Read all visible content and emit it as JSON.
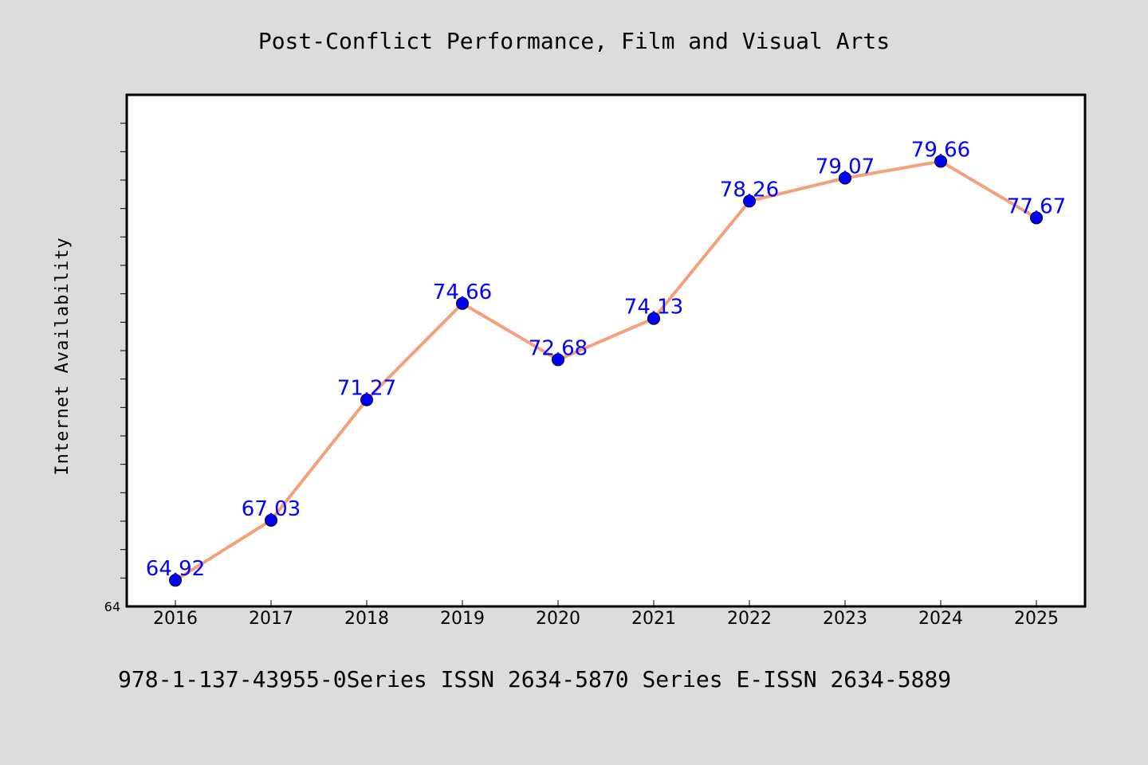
{
  "chart_data": {
    "type": "line",
    "title": "Post-Conflict Performance, Film and Visual Arts",
    "xlabel": "",
    "ylabel": "Internet Availability",
    "categories": [
      "2016",
      "2017",
      "2018",
      "2019",
      "2020",
      "2021",
      "2022",
      "2023",
      "2024",
      "2025"
    ],
    "series": [
      {
        "values": [
          64.92,
          67.03,
          71.27,
          74.66,
          72.68,
          74.13,
          78.26,
          79.07,
          79.66,
          77.67
        ],
        "labels": [
          "64.92",
          "67.03",
          "71.27",
          "74.66",
          "72.68",
          "74.13",
          "78.26",
          "79.07",
          "79.66",
          "77.67"
        ],
        "line_color": "#f4a07c",
        "marker_color": "#0000ff"
      }
    ],
    "ylim": [
      64,
      82
    ],
    "yticks_shown": [
      "64"
    ],
    "grid": false,
    "legend": "none"
  },
  "footer": {
    "text": "978-1-137-43955-0Series ISSN 2634-5870 Series E-ISSN 2634-5889"
  },
  "colors": {
    "background": "#dcdcdc",
    "plot_background": "#ffffff",
    "label_color": "#0000ff"
  }
}
